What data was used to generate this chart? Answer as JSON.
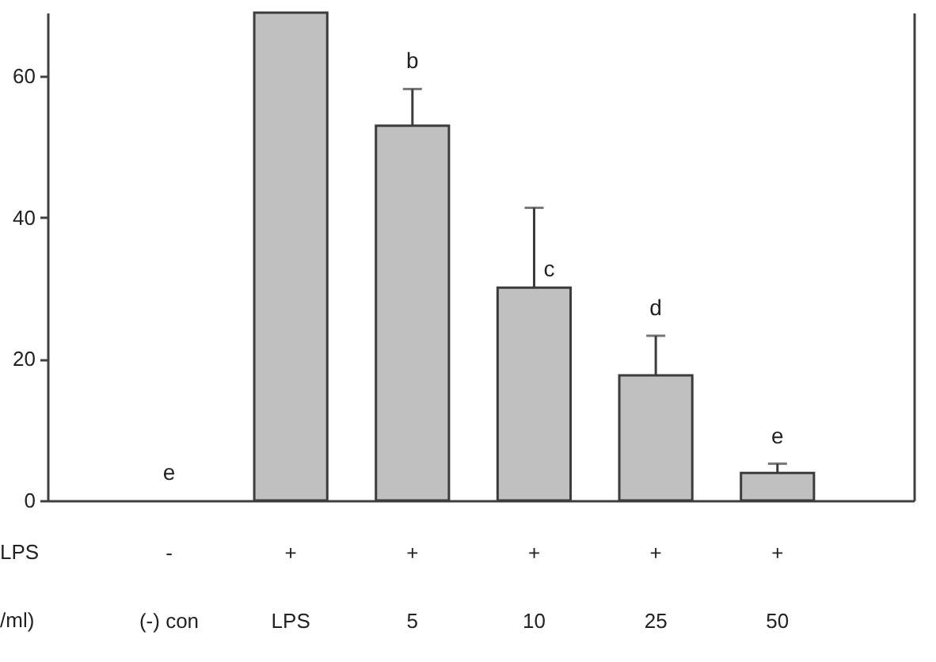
{
  "chart_data": {
    "type": "bar",
    "categories": [
      "-\n(-) con",
      "+\nLPS",
      "+\n5",
      "+\n10",
      "+\n25",
      "+\n50"
    ],
    "values": [
      null,
      69,
      53.0,
      30.1,
      17.7,
      3.9
    ],
    "color": "#c0c0c0",
    "errors": [
      null,
      null,
      [
        53.0,
        58.2
      ],
      [
        30.1,
        41.4
      ],
      [
        17.7,
        23.3
      ],
      [
        3.9,
        5.2
      ]
    ],
    "value_labels": [
      "e",
      null,
      "b",
      "c",
      "d",
      "e"
    ],
    "ylim": [
      0,
      69
    ],
    "yticks": [
      0,
      20,
      40,
      60
    ],
    "grid": false,
    "annotations": [
      "LPS",
      "/ml)"
    ]
  }
}
